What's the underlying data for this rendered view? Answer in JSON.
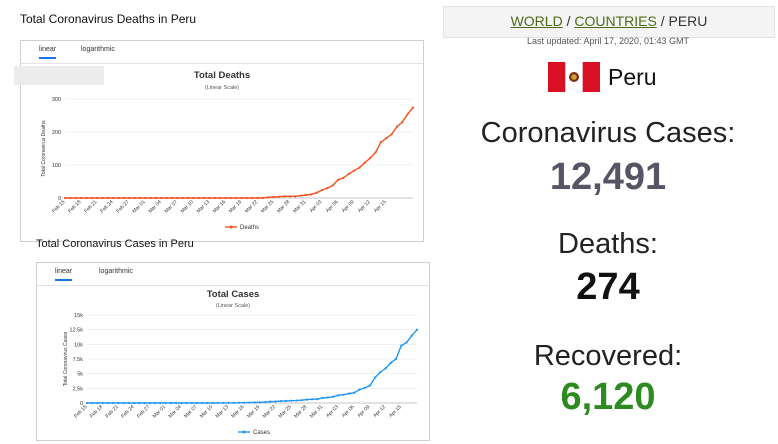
{
  "deaths_section": {
    "title": "Total Coronavirus Deaths in Peru"
  },
  "cases_section": {
    "title": "Total Coronavirus Cases in Peru"
  },
  "tabs": {
    "linear": "linear",
    "logarithmic": "logarithmic"
  },
  "chart_data": [
    {
      "type": "line",
      "title": "Total Deaths",
      "subtitle": "(Linear Scale)",
      "ylabel": "Total Coronavirus Deaths",
      "xlabel": "",
      "ylim": [
        0,
        300
      ],
      "yticks": [
        "0",
        "100",
        "200",
        "300"
      ],
      "color": "#f4511e",
      "legend_position": "bottom",
      "x_tick_labels": [
        "Feb 15",
        "Feb 18",
        "Feb 21",
        "Feb 24",
        "Feb 27",
        "Mar 01",
        "Mar 04",
        "Mar 07",
        "Mar 10",
        "Mar 13",
        "Mar 16",
        "Mar 19",
        "Mar 22",
        "Mar 25",
        "Mar 28",
        "Mar 31",
        "Apr 03",
        "Apr 06",
        "Apr 09",
        "Apr 12",
        "Apr 15"
      ],
      "series": [
        {
          "name": "Deaths",
          "values": [
            0,
            0,
            0,
            0,
            0,
            0,
            0,
            0,
            0,
            0,
            0,
            0,
            0,
            0,
            0,
            0,
            0,
            0,
            0,
            0,
            0,
            0,
            0,
            0,
            0,
            0,
            0,
            0,
            0,
            0,
            0,
            0,
            0,
            0,
            0,
            0,
            0,
            0,
            2,
            3,
            4,
            5,
            5,
            5,
            7,
            9,
            11,
            16,
            24,
            30,
            38,
            55,
            61,
            73,
            83,
            92,
            107,
            121,
            138,
            169,
            181,
            193,
            216,
            230,
            254,
            274
          ]
        }
      ]
    },
    {
      "type": "line",
      "title": "Total Cases",
      "subtitle": "(Linear Scale)",
      "ylabel": "Total Coronavirus Cases",
      "xlabel": "",
      "ylim": [
        0,
        15000
      ],
      "yticks": [
        "0",
        "2.5k",
        "5k",
        "7.5k",
        "10k",
        "12.5k",
        "15k"
      ],
      "color": "#2196f3",
      "legend_position": "bottom",
      "x_tick_labels": [
        "Feb 15",
        "Feb 18",
        "Feb 21",
        "Feb 24",
        "Feb 27",
        "Mar 01",
        "Mar 04",
        "Mar 07",
        "Mar 10",
        "Mar 13",
        "Mar 16",
        "Mar 19",
        "Mar 22",
        "Mar 25",
        "Mar 28",
        "Mar 31",
        "Apr 03",
        "Apr 06",
        "Apr 09",
        "Apr 12",
        "Apr 15"
      ],
      "series": [
        {
          "name": "Cases",
          "values": [
            0,
            0,
            0,
            0,
            0,
            0,
            0,
            0,
            0,
            0,
            0,
            0,
            0,
            0,
            0,
            0,
            0,
            0,
            0,
            0,
            0,
            1,
            1,
            6,
            7,
            9,
            11,
            17,
            22,
            38,
            43,
            71,
            86,
            117,
            145,
            234,
            263,
            318,
            363,
            395,
            416,
            480,
            580,
            635,
            671,
            852,
            950,
            1065,
            1323,
            1414,
            1595,
            1746,
            2281,
            2561,
            2954,
            4342,
            5256,
            5897,
            6848,
            7519,
            9784,
            10303,
            11475,
            12491
          ]
        }
      ]
    }
  ],
  "header": {
    "world": "WORLD",
    "sep1": " / ",
    "countries": "COUNTRIES",
    "sep2": " / ",
    "current": "PERU"
  },
  "last_updated": "Last updated: April 17, 2020, 01:43 GMT",
  "country": {
    "name": "Peru",
    "flag_colors": [
      "#d91023",
      "#ffffff",
      "#d91023"
    ]
  },
  "stats": {
    "cases_label": "Coronavirus Cases:",
    "cases_value": "12,491",
    "cases_color": "#555566",
    "deaths_label": "Deaths:",
    "deaths_value": "274",
    "deaths_color": "#111111",
    "recovered_label": "Recovered:",
    "recovered_value": "6,120",
    "recovered_color": "#2e8b22"
  }
}
